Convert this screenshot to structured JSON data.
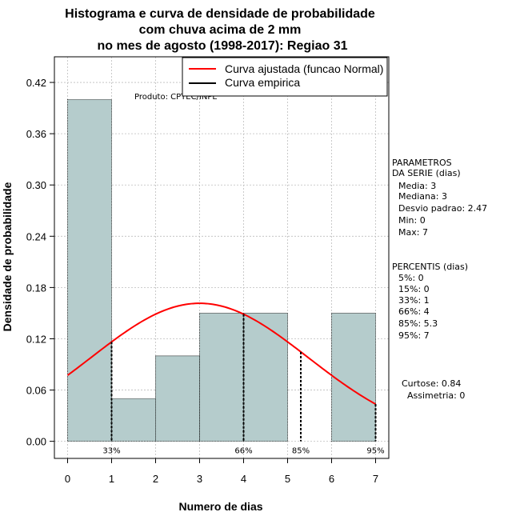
{
  "chart_data": {
    "type": "bar",
    "title": [
      "Histograma e curva de densidade de probabilidade",
      "com chuva acima de 2 mm",
      "no mes de agosto (1998-2017): Regiao 31"
    ],
    "xlabel": "Numero de dias",
    "ylabel": "Densidade de probabilidade",
    "xlim": [
      -0.3,
      7.3
    ],
    "ylim": [
      -0.02,
      0.45
    ],
    "x_ticks": [
      0,
      1,
      2,
      3,
      4,
      5,
      6,
      7
    ],
    "y_ticks": [
      0.0,
      0.06,
      0.12,
      0.18,
      0.24,
      0.3,
      0.36,
      0.42
    ],
    "y_tick_labels": [
      "0.00",
      "0.06",
      "0.12",
      "0.18",
      "0.24",
      "0.30",
      "0.36",
      "0.42"
    ],
    "grid": true,
    "bins": [
      {
        "from": 0,
        "to": 1,
        "density": 0.4
      },
      {
        "from": 1,
        "to": 2,
        "density": 0.05
      },
      {
        "from": 2,
        "to": 3,
        "density": 0.1
      },
      {
        "from": 3,
        "to": 4,
        "density": 0.15
      },
      {
        "from": 4,
        "to": 5,
        "density": 0.15
      },
      {
        "from": 5,
        "to": 6,
        "density": 0.0
      },
      {
        "from": 6,
        "to": 7,
        "density": 0.15
      }
    ],
    "normal_curve": {
      "name": "Curva ajustada (funcao Normal)",
      "mean": 3,
      "sd": 2.47,
      "color": "#ff0000"
    },
    "empirical_curve": {
      "name": "Curva empirica",
      "color": "#000000"
    },
    "percentile_lines": [
      {
        "x": 1,
        "label": "33%"
      },
      {
        "x": 4,
        "label": "66%"
      },
      {
        "x": 5.3,
        "label": "85%"
      },
      {
        "x": 7,
        "label": "95%"
      }
    ],
    "legend_position": "top-right",
    "bar_color": "#b5cccc",
    "source_note": "Produto: CPTEC/INPE"
  },
  "side_panel": {
    "params_title": [
      "PARAMETROS",
      "DA SERIE (dias)"
    ],
    "params": [
      "Media: 3",
      "Mediana: 3",
      "Desvio padrao: 2.47",
      "Min: 0",
      "Max: 7"
    ],
    "percentis_title": "PERCENTIS (dias)",
    "percentis": [
      "5%: 0",
      "15%: 0",
      "33%: 1",
      "66%: 4",
      "85%: 5.3",
      "95%: 7"
    ],
    "curtose": "Curtose: 0.84",
    "assimetria": "Assimetria: 0"
  }
}
